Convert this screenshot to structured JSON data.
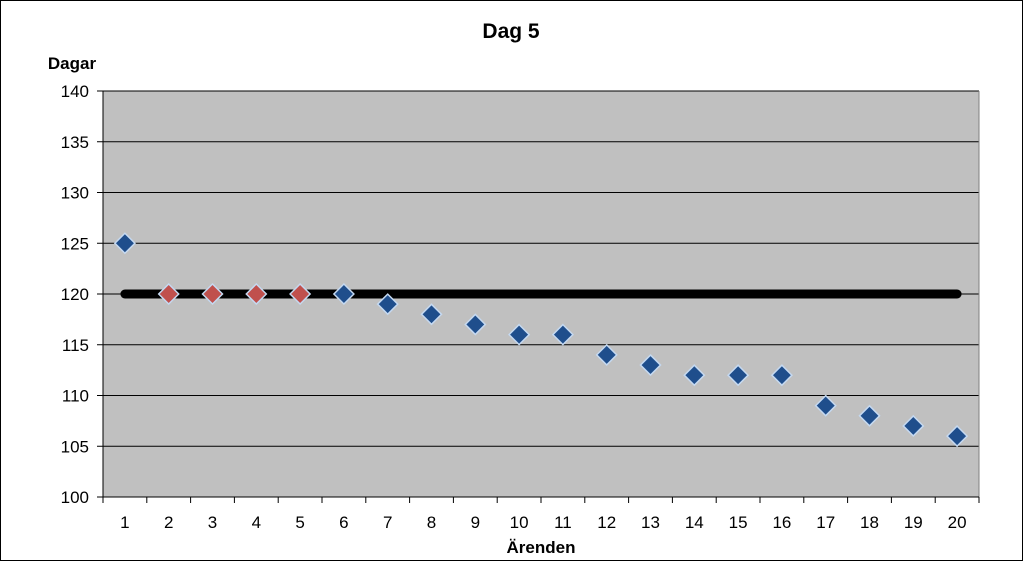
{
  "chart_data": {
    "type": "scatter",
    "title": "Dag 5",
    "ylabel": "Dagar",
    "xlabel": "Ärenden",
    "categories": [
      "1",
      "2",
      "3",
      "4",
      "5",
      "6",
      "7",
      "8",
      "9",
      "10",
      "11",
      "12",
      "13",
      "14",
      "15",
      "16",
      "17",
      "18",
      "19",
      "20"
    ],
    "ylim": [
      100,
      140
    ],
    "yticks": [
      100,
      105,
      110,
      115,
      120,
      125,
      130,
      135,
      140
    ],
    "grid": true,
    "legend": "none",
    "colors": {
      "plot_background": "#c0c0c0",
      "gridline": "#000000",
      "reference_line": "#000000",
      "marker_blue": "#1f4e8c",
      "marker_red": "#c0504d",
      "marker_outline": "#c5d9f1"
    },
    "reference_line": {
      "y": 120,
      "x_from": 1,
      "x_to": 20
    },
    "points": [
      {
        "x": 1,
        "y": 125,
        "color": "blue"
      },
      {
        "x": 2,
        "y": 120,
        "color": "red"
      },
      {
        "x": 3,
        "y": 120,
        "color": "red"
      },
      {
        "x": 4,
        "y": 120,
        "color": "red"
      },
      {
        "x": 5,
        "y": 120,
        "color": "red"
      },
      {
        "x": 6,
        "y": 120,
        "color": "blue"
      },
      {
        "x": 7,
        "y": 119,
        "color": "blue"
      },
      {
        "x": 8,
        "y": 118,
        "color": "blue"
      },
      {
        "x": 9,
        "y": 117,
        "color": "blue"
      },
      {
        "x": 10,
        "y": 116,
        "color": "blue"
      },
      {
        "x": 11,
        "y": 116,
        "color": "blue"
      },
      {
        "x": 12,
        "y": 114,
        "color": "blue"
      },
      {
        "x": 13,
        "y": 113,
        "color": "blue"
      },
      {
        "x": 14,
        "y": 112,
        "color": "blue"
      },
      {
        "x": 15,
        "y": 112,
        "color": "blue"
      },
      {
        "x": 16,
        "y": 112,
        "color": "blue"
      },
      {
        "x": 17,
        "y": 109,
        "color": "blue"
      },
      {
        "x": 18,
        "y": 108,
        "color": "blue"
      },
      {
        "x": 19,
        "y": 107,
        "color": "blue"
      },
      {
        "x": 20,
        "y": 106,
        "color": "blue"
      }
    ]
  }
}
